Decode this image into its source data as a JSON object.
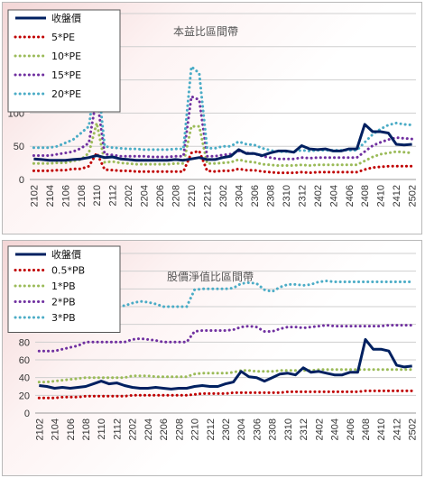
{
  "chart_data": [
    {
      "type": "line",
      "title": "本益比區間帶",
      "xlabel": "",
      "ylabel": "",
      "ylim": [
        0,
        250
      ],
      "yticks": [
        "0",
        "50",
        "100",
        "150",
        "200",
        "250"
      ],
      "xtick_labels": [
        "2102",
        "2104",
        "2106",
        "2108",
        "2110",
        "2112",
        "2202",
        "2204",
        "2206",
        "2208",
        "2210",
        "2212",
        "2302",
        "2304",
        "2306",
        "2308",
        "2310",
        "2312",
        "2402",
        "2404",
        "2406",
        "2408",
        "2410",
        "2412",
        "2502"
      ],
      "legend_position": "top-left",
      "series": [
        {
          "name": "收盤價",
          "color": "#002060",
          "style": "solid",
          "values": [
            31,
            30,
            29,
            29,
            29,
            30,
            31,
            33,
            36,
            33,
            34,
            31,
            30,
            29,
            29,
            29,
            29,
            29,
            30,
            29,
            31,
            33,
            30,
            30,
            33,
            35,
            45,
            39,
            39,
            36,
            40,
            43,
            43,
            41,
            51,
            46,
            45,
            46,
            43,
            43,
            46,
            46,
            83,
            72,
            72,
            70,
            53,
            52,
            53
          ]
        },
        {
          "name": "5*PE",
          "color": "#c00000",
          "style": "dotted",
          "values": [
            13,
            13,
            13,
            14,
            14,
            16,
            16,
            20,
            40,
            15,
            14,
            13,
            13,
            12,
            12,
            12,
            12,
            12,
            12,
            12,
            40,
            43,
            13,
            12,
            13,
            13,
            16,
            14,
            14,
            12,
            11,
            10,
            10,
            10,
            11,
            10,
            11,
            11,
            11,
            11,
            11,
            11,
            15,
            18,
            19,
            20,
            20,
            20,
            20
          ]
        },
        {
          "name": "10*PE",
          "color": "#9bbb59",
          "style": "dotted",
          "values": [
            24,
            24,
            24,
            25,
            25,
            28,
            30,
            40,
            85,
            26,
            27,
            25,
            24,
            23,
            23,
            23,
            23,
            23,
            24,
            24,
            80,
            80,
            24,
            24,
            25,
            26,
            30,
            27,
            26,
            23,
            22,
            21,
            21,
            21,
            22,
            21,
            22,
            22,
            22,
            22,
            22,
            22,
            28,
            34,
            38,
            40,
            42,
            41,
            40
          ]
        },
        {
          "name": "15*PE",
          "color": "#7030a0",
          "style": "dotted",
          "values": [
            36,
            36,
            36,
            38,
            40,
            42,
            47,
            55,
            125,
            38,
            37,
            35,
            35,
            35,
            35,
            34,
            34,
            34,
            35,
            35,
            125,
            120,
            35,
            35,
            37,
            38,
            43,
            40,
            39,
            35,
            33,
            31,
            31,
            31,
            33,
            32,
            33,
            33,
            33,
            33,
            33,
            33,
            42,
            51,
            56,
            60,
            63,
            62,
            61
          ]
        },
        {
          "name": "20*PE",
          "color": "#4bacc6",
          "style": "dotted",
          "values": [
            48,
            48,
            48,
            50,
            55,
            60,
            70,
            80,
            165,
            50,
            48,
            47,
            46,
            46,
            45,
            45,
            45,
            45,
            46,
            46,
            170,
            160,
            47,
            47,
            50,
            50,
            57,
            53,
            52,
            47,
            44,
            42,
            42,
            42,
            44,
            43,
            44,
            44,
            44,
            44,
            44,
            44,
            56,
            68,
            76,
            82,
            85,
            83,
            82
          ]
        }
      ]
    },
    {
      "type": "line",
      "title": "股價淨值比區間帶",
      "xlabel": "",
      "ylabel": "",
      "ylim": [
        0,
        180
      ],
      "yticks": [
        "0",
        "20",
        "40",
        "60",
        "80",
        "100",
        "120",
        "140",
        "160",
        "180"
      ],
      "xtick_labels": [
        "2102",
        "2104",
        "2106",
        "2108",
        "2110",
        "2112",
        "2202",
        "2204",
        "2206",
        "2208",
        "2210",
        "2212",
        "2302",
        "2304",
        "2306",
        "2308",
        "2310",
        "2312",
        "2402",
        "2404",
        "2406",
        "2408",
        "2410",
        "2412",
        "2502"
      ],
      "legend_position": "top-left",
      "series": [
        {
          "name": "收盤價",
          "color": "#002060",
          "style": "solid",
          "values": [
            31,
            30,
            28,
            29,
            28,
            29,
            30,
            33,
            36,
            33,
            34,
            31,
            29,
            28,
            28,
            29,
            28,
            27,
            28,
            28,
            30,
            31,
            30,
            30,
            33,
            35,
            47,
            41,
            40,
            36,
            40,
            44,
            45,
            43,
            51,
            46,
            47,
            45,
            43,
            43,
            46,
            46,
            83,
            72,
            72,
            70,
            54,
            52,
            53
          ]
        },
        {
          "name": "0.5*PB",
          "color": "#c00000",
          "style": "dotted",
          "values": [
            17,
            17,
            17,
            18,
            18,
            18,
            19,
            19,
            19,
            19,
            19,
            19,
            20,
            20,
            20,
            20,
            20,
            20,
            20,
            20,
            21,
            22,
            22,
            22,
            22,
            23,
            23,
            23,
            23,
            23,
            23,
            23,
            24,
            24,
            24,
            24,
            24,
            24,
            24,
            24,
            24,
            24,
            25,
            25,
            25,
            25,
            25,
            25,
            25
          ]
        },
        {
          "name": "1*PB",
          "color": "#9bbb59",
          "style": "dotted",
          "values": [
            35,
            35,
            36,
            37,
            38,
            39,
            40,
            40,
            40,
            40,
            40,
            40,
            42,
            42,
            42,
            41,
            41,
            41,
            41,
            41,
            44,
            45,
            45,
            45,
            45,
            46,
            48,
            48,
            47,
            47,
            47,
            48,
            48,
            48,
            48,
            48,
            49,
            49,
            49,
            49,
            49,
            49,
            49,
            49,
            49,
            49,
            49,
            49,
            49
          ]
        },
        {
          "name": "2*PB",
          "color": "#7030a0",
          "style": "dotted",
          "values": [
            70,
            70,
            70,
            72,
            74,
            76,
            80,
            80,
            80,
            80,
            80,
            80,
            83,
            84,
            83,
            82,
            80,
            80,
            80,
            80,
            92,
            93,
            93,
            93,
            93,
            94,
            97,
            98,
            97,
            92,
            92,
            95,
            97,
            97,
            96,
            97,
            98,
            99,
            98,
            98,
            98,
            98,
            98,
            98,
            98,
            99,
            99,
            99,
            99
          ]
        },
        {
          "name": "3*PB",
          "color": "#4bacc6",
          "style": "dotted",
          "values": [
            105,
            106,
            106,
            108,
            111,
            114,
            120,
            121,
            121,
            121,
            121,
            121,
            124,
            126,
            125,
            123,
            120,
            120,
            120,
            120,
            139,
            140,
            140,
            140,
            140,
            141,
            146,
            147,
            146,
            139,
            137,
            142,
            145,
            145,
            144,
            145,
            148,
            149,
            148,
            148,
            148,
            148,
            148,
            148,
            148,
            148,
            148,
            148,
            148
          ]
        }
      ]
    }
  ]
}
